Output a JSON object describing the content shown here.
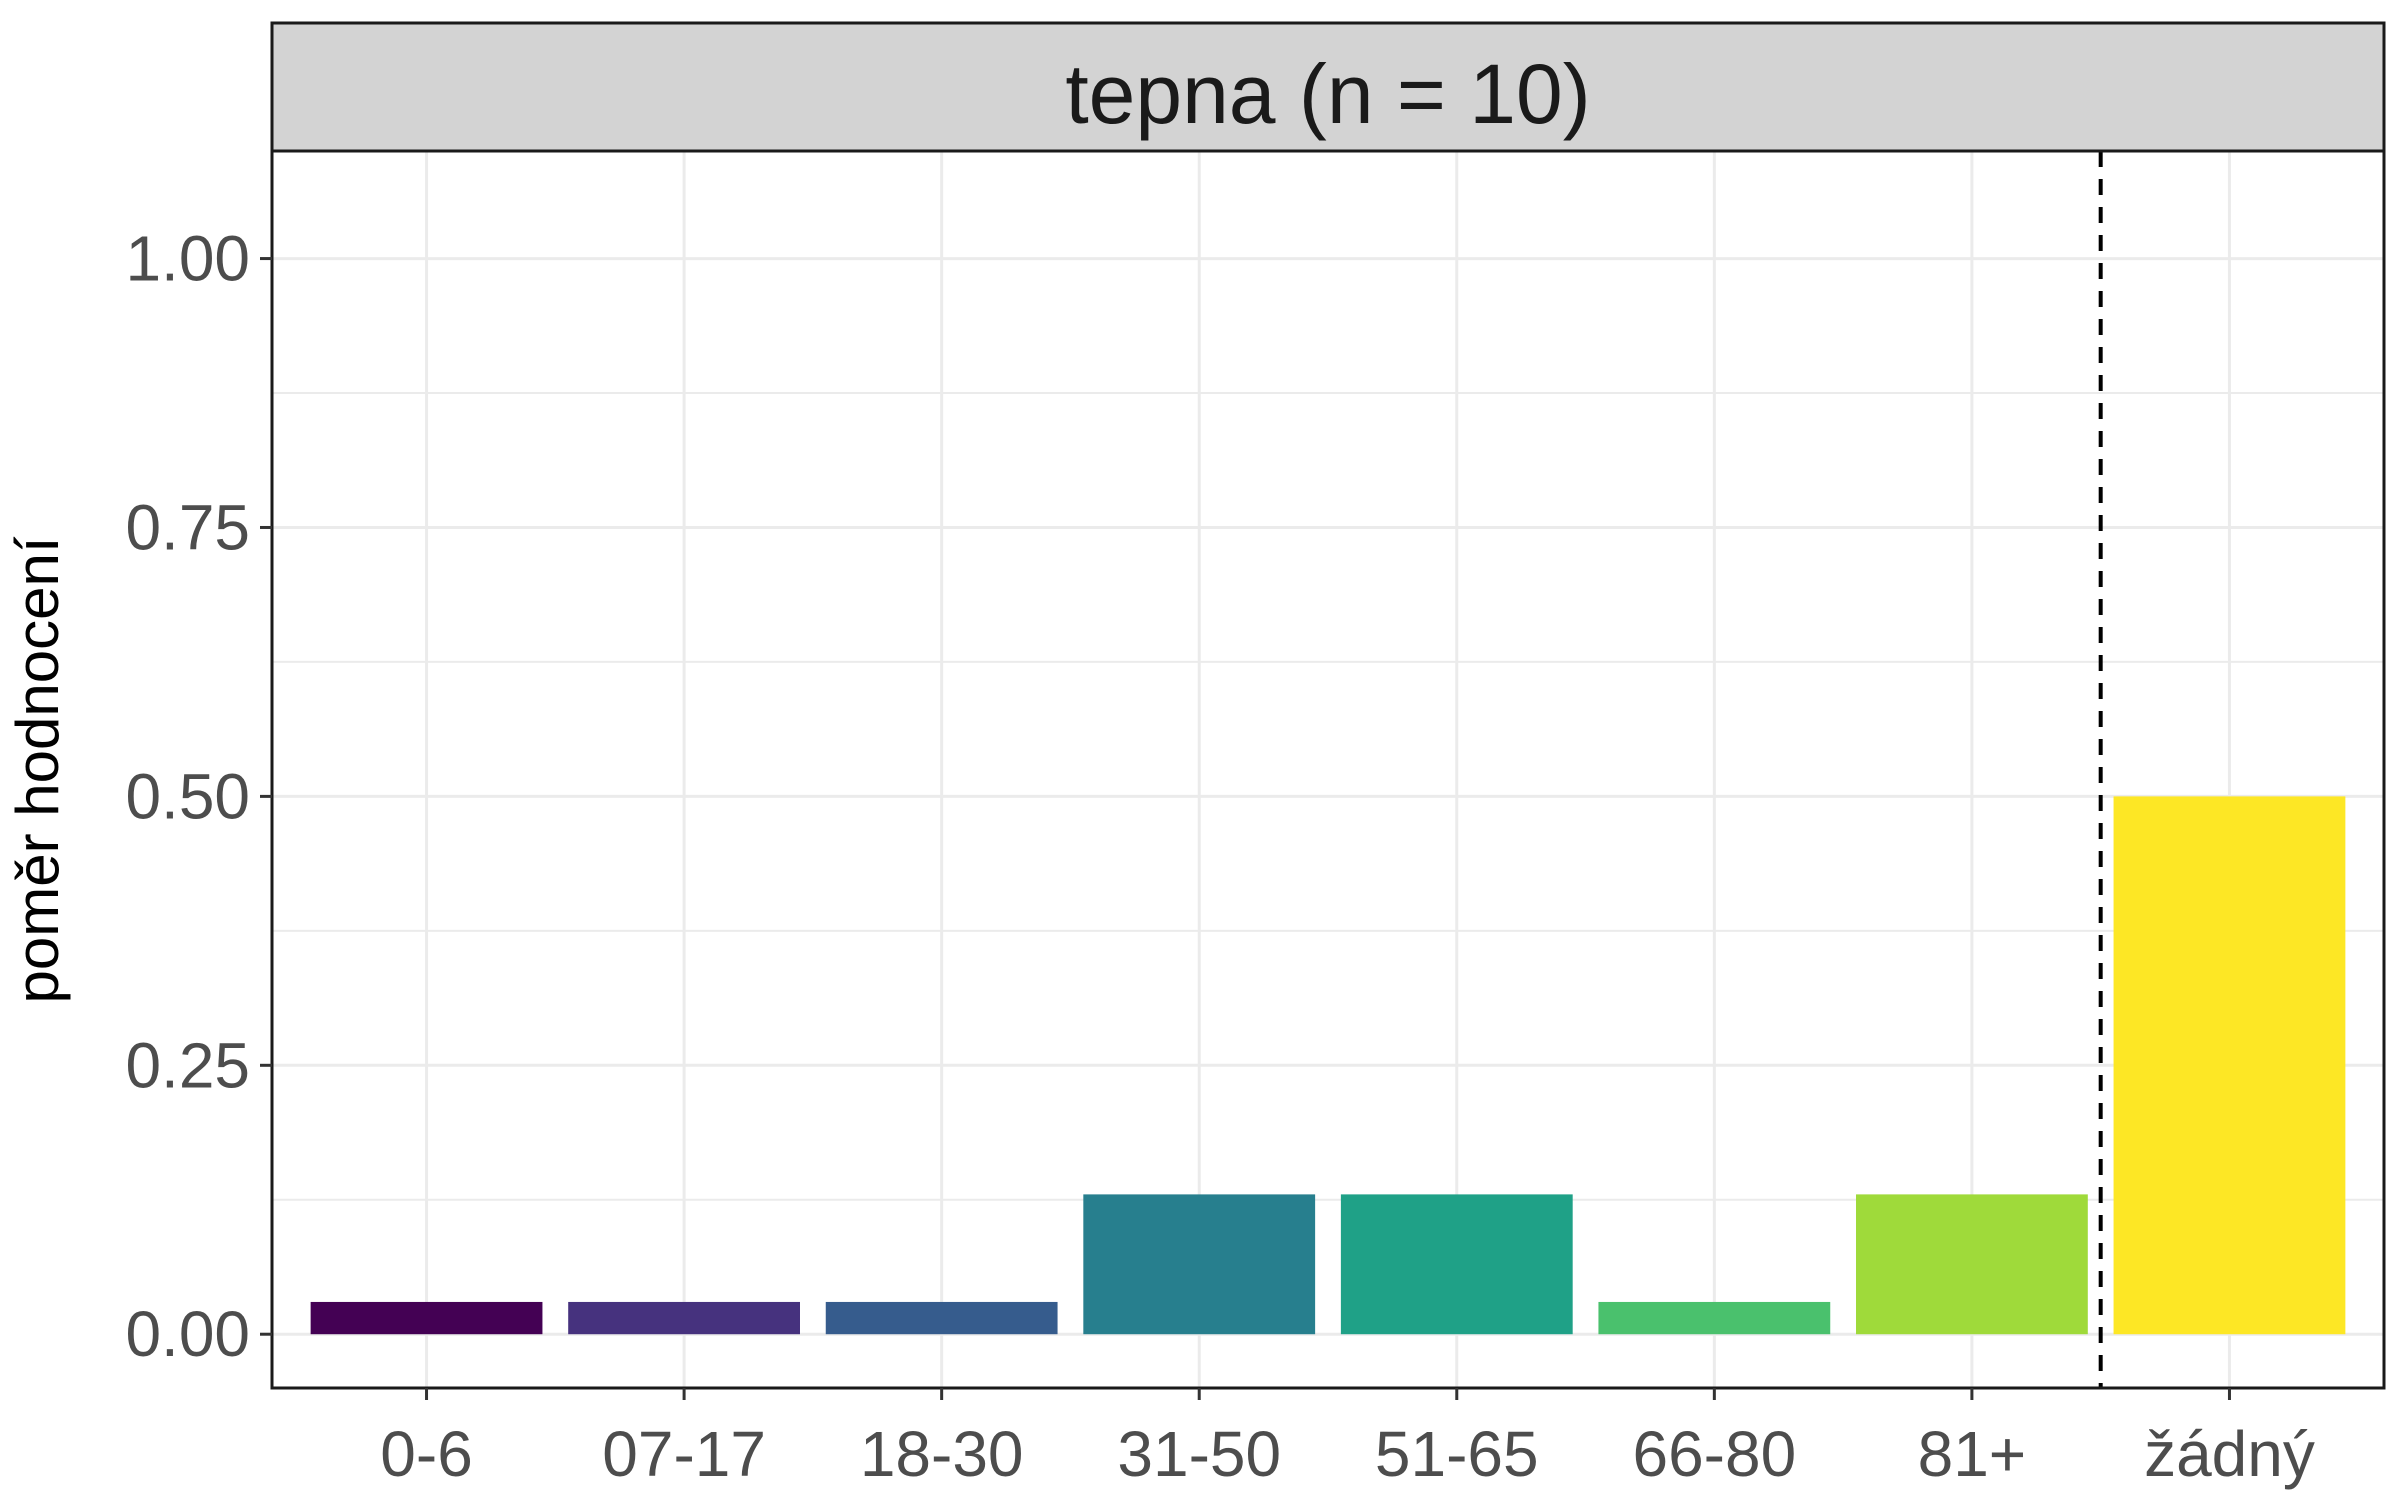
{
  "chart_data": {
    "type": "bar",
    "title": "tepna (n = 10)",
    "xlabel": "",
    "ylabel": "poměr hodnocení",
    "categories": [
      "0-6",
      "07-17",
      "18-30",
      "31-50",
      "51-65",
      "66-80",
      "81+",
      "žádný"
    ],
    "values": [
      0.03,
      0.03,
      0.03,
      0.13,
      0.13,
      0.03,
      0.13,
      0.5
    ],
    "colors": [
      "#440154",
      "#46327E",
      "#365C8D",
      "#277F8E",
      "#1FA187",
      "#4AC16D",
      "#9FDA3A",
      "#FDE725"
    ],
    "ylim": [
      -0.05,
      1.1
    ],
    "yticks": [
      0.0,
      0.25,
      0.5,
      0.75,
      1.0
    ],
    "ytick_labels": [
      "0.00",
      "0.25",
      "0.50",
      "0.75",
      "1.00"
    ],
    "grid": true,
    "reference_line": {
      "after_category": "81+",
      "style": "dashed"
    }
  }
}
